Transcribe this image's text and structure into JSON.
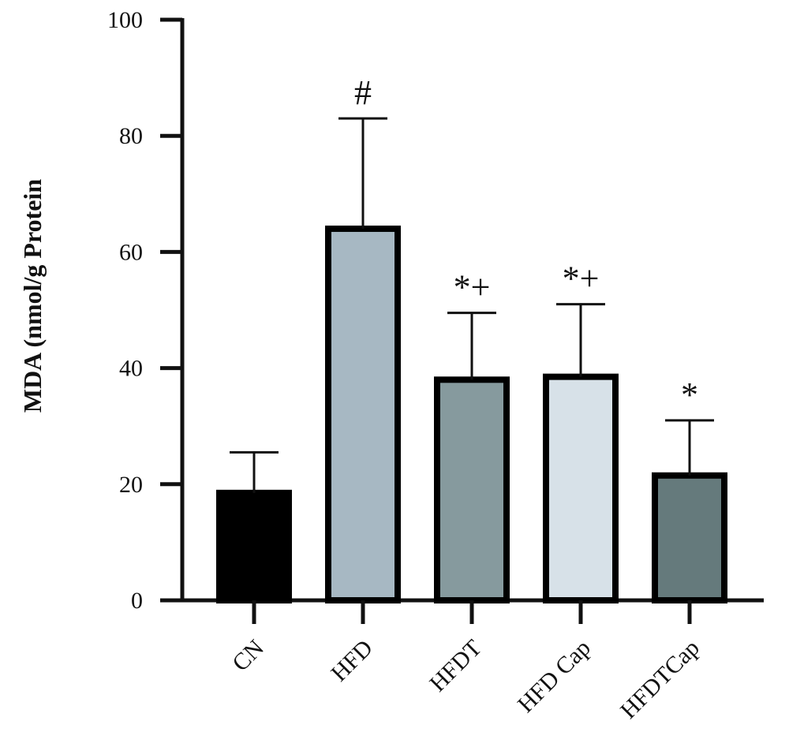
{
  "chart_data": {
    "type": "bar",
    "title": "",
    "xlabel": "",
    "ylabel": "MDA (nmol/g Protein",
    "ylim": [
      0,
      100
    ],
    "yticks": [
      0,
      20,
      40,
      60,
      80,
      100
    ],
    "ytick_labels": [
      "0",
      "20",
      "40",
      "60",
      "80",
      "100"
    ],
    "categories": [
      "CN",
      "HFD",
      "HFDT",
      "HFD Cap",
      "HFDTCap"
    ],
    "values": [
      18.5,
      64,
      38,
      38.5,
      21.5
    ],
    "errors": [
      7,
      19,
      11.5,
      12.5,
      9.5
    ],
    "significance": [
      "",
      "#",
      "*+",
      "*+",
      "*"
    ],
    "colors": [
      "#000000",
      "#a7b8c3",
      "#869a9e",
      "#d7e1e8",
      "#657a7c"
    ],
    "grid": false,
    "legend": "none"
  }
}
